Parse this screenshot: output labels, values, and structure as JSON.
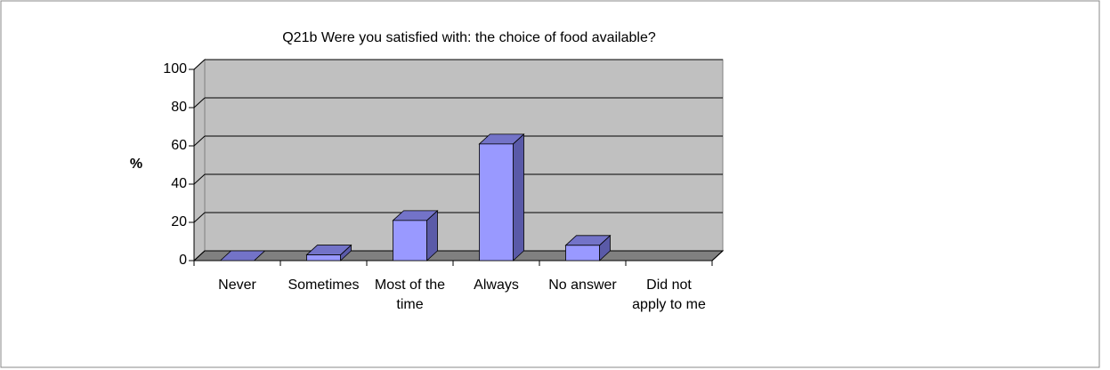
{
  "chart_data": {
    "type": "bar3d",
    "title": "Q21b Were you satisfied with: the choice of food available?",
    "y_label": "%",
    "categories": [
      "Never",
      "Sometimes",
      "Most of the time",
      "Always",
      "No answer",
      "Did not apply to me"
    ],
    "values": [
      0,
      3,
      21,
      61,
      8,
      null
    ],
    "color": "#9999ff",
    "ylim": [
      0,
      100
    ],
    "yticks": [
      0,
      20,
      40,
      60,
      80,
      100
    ],
    "grid": true
  }
}
